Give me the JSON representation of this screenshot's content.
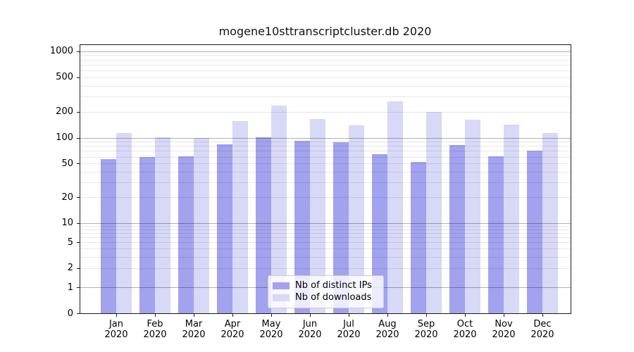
{
  "chart_data": {
    "type": "bar",
    "title": "mogene10sttranscriptcluster.db 2020",
    "categories": [
      "Jan 2020",
      "Feb 2020",
      "Mar 2020",
      "Apr 2020",
      "May 2020",
      "Jun 2020",
      "Jul 2020",
      "Aug 2020",
      "Sep 2020",
      "Oct 2020",
      "Nov 2020",
      "Dec 2020"
    ],
    "series": [
      {
        "name": "Nb of distinct IPs",
        "color": "#a2a2ee",
        "values": [
          56,
          59,
          61,
          84,
          102,
          92,
          88,
          64,
          52,
          82,
          61,
          70
        ]
      },
      {
        "name": "Nb of downloads",
        "color": "#d8d8f7",
        "values": [
          114,
          101,
          100,
          155,
          236,
          164,
          140,
          263,
          200,
          161,
          142,
          113
        ]
      }
    ],
    "yscale": "symlog",
    "ylim": [
      0,
      1200
    ],
    "yticks": [
      0,
      1,
      2,
      5,
      10,
      20,
      50,
      100,
      200,
      500,
      1000
    ],
    "xlabel": "",
    "ylabel": "",
    "grid": true,
    "grid_major_color": "#b0b0b0",
    "grid_minor_color": "#e8e8e8",
    "legend_position": "lower center",
    "legend_entries": [
      "Nb of distinct IPs",
      "Nb of downloads"
    ]
  }
}
